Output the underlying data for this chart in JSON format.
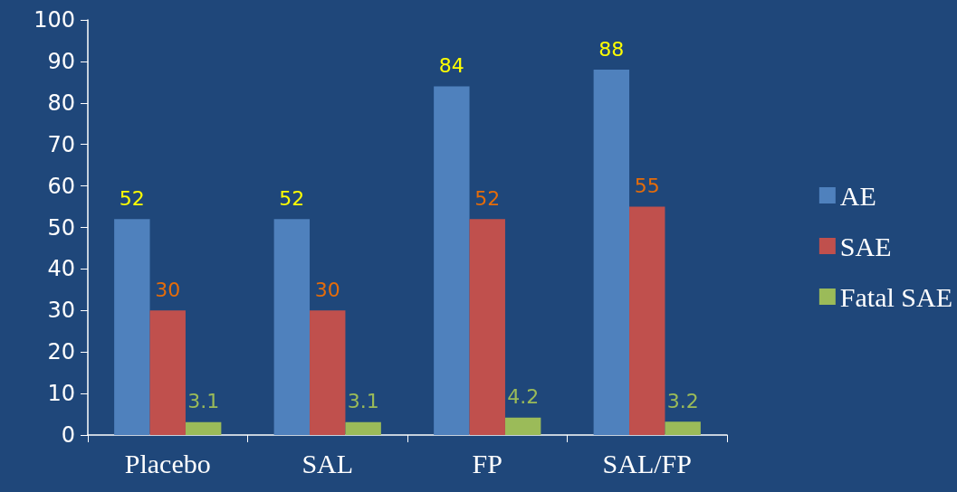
{
  "chart_data": {
    "type": "bar",
    "categories": [
      "Placebo",
      "SAL",
      "FP",
      "SAL/FP"
    ],
    "series": [
      {
        "name": "AE",
        "color": "#4f81bd",
        "values": [
          52,
          52,
          84,
          88
        ]
      },
      {
        "name": "SAE",
        "color": "#c0504d",
        "values": [
          30,
          30,
          52,
          55
        ]
      },
      {
        "name": "Fatal SAE",
        "color": "#9bbb59",
        "values": [
          3.1,
          3.1,
          4.2,
          3.2
        ]
      }
    ],
    "ylim": [
      0,
      100
    ],
    "yticks": [
      0,
      10,
      20,
      30,
      40,
      50,
      60,
      70,
      80,
      90,
      100
    ],
    "grid": false,
    "legend": "right",
    "data_labels": true
  }
}
